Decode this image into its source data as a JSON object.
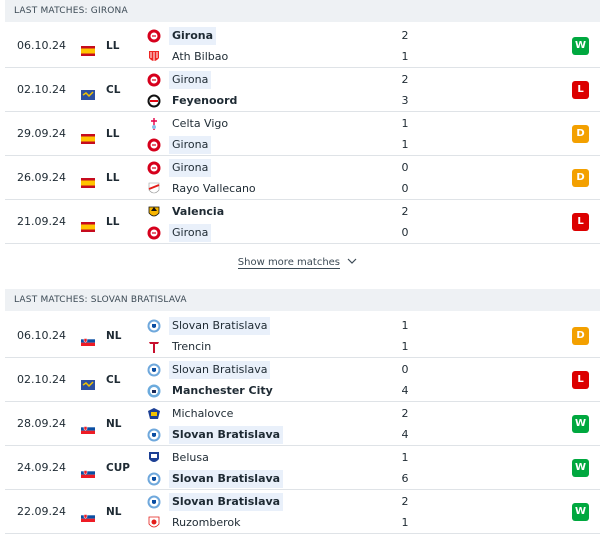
{
  "girona": {
    "header": "LAST MATCHES: GIRONA",
    "show_more": "Show more matches",
    "matches": [
      {
        "date": "06.10.24",
        "comp": "LL",
        "flag": "spain",
        "home": "Girona",
        "away": "Ath Bilbao",
        "hs": "2",
        "as": "1",
        "result": "W",
        "hl": "home",
        "bold": "home",
        "home_crest": "girona-crest",
        "away_crest": "bilbao-crest"
      },
      {
        "date": "02.10.24",
        "comp": "CL",
        "flag": "europe",
        "home": "Girona",
        "away": "Feyenoord",
        "hs": "2",
        "as": "3",
        "result": "L",
        "hl": "home",
        "bold": "away",
        "home_crest": "girona-crest",
        "away_crest": "feyenoord-crest"
      },
      {
        "date": "29.09.24",
        "comp": "LL",
        "flag": "spain",
        "home": "Celta Vigo",
        "away": "Girona",
        "hs": "1",
        "as": "1",
        "result": "D",
        "hl": "away",
        "bold": "none",
        "home_crest": "celta-crest",
        "away_crest": "girona-crest"
      },
      {
        "date": "26.09.24",
        "comp": "LL",
        "flag": "spain",
        "home": "Girona",
        "away": "Rayo Vallecano",
        "hs": "0",
        "as": "0",
        "result": "D",
        "hl": "home",
        "bold": "none",
        "home_crest": "girona-crest",
        "away_crest": "rayo-crest"
      },
      {
        "date": "21.09.24",
        "comp": "LL",
        "flag": "spain",
        "home": "Valencia",
        "away": "Girona",
        "hs": "2",
        "as": "0",
        "result": "L",
        "hl": "away",
        "bold": "home",
        "home_crest": "valencia-crest",
        "away_crest": "girona-crest"
      }
    ]
  },
  "slovan": {
    "header": "LAST MATCHES: SLOVAN BRATISLAVA",
    "matches": [
      {
        "date": "06.10.24",
        "comp": "NL",
        "flag": "slovakia",
        "home": "Slovan Bratislava",
        "away": "Trencin",
        "hs": "1",
        "as": "1",
        "result": "D",
        "hl": "home",
        "bold": "none",
        "home_crest": "slovan-crest",
        "away_crest": "trencin-crest"
      },
      {
        "date": "02.10.24",
        "comp": "CL",
        "flag": "europe",
        "home": "Slovan Bratislava",
        "away": "Manchester City",
        "hs": "0",
        "as": "4",
        "result": "L",
        "hl": "home",
        "bold": "away",
        "home_crest": "slovan-crest",
        "away_crest": "mancity-crest"
      },
      {
        "date": "28.09.24",
        "comp": "NL",
        "flag": "slovakia",
        "home": "Michalovce",
        "away": "Slovan Bratislava",
        "hs": "2",
        "as": "4",
        "result": "W",
        "hl": "away",
        "bold": "away",
        "home_crest": "michalovce-crest",
        "away_crest": "slovan-crest"
      },
      {
        "date": "24.09.24",
        "comp": "CUP",
        "flag": "slovakia",
        "home": "Belusa",
        "away": "Slovan Bratislava",
        "hs": "1",
        "as": "6",
        "result": "W",
        "hl": "away",
        "bold": "away",
        "home_crest": "belusa-crest",
        "away_crest": "slovan-crest"
      },
      {
        "date": "22.09.24",
        "comp": "NL",
        "flag": "slovakia",
        "home": "Slovan Bratislava",
        "away": "Ruzomberok",
        "hs": "2",
        "as": "1",
        "result": "W",
        "hl": "home",
        "bold": "home",
        "home_crest": "slovan-crest",
        "away_crest": "ruzomberok-crest"
      }
    ]
  },
  "colors": {
    "W": "#00a83f",
    "L": "#dc0000",
    "D": "#f3a000"
  }
}
